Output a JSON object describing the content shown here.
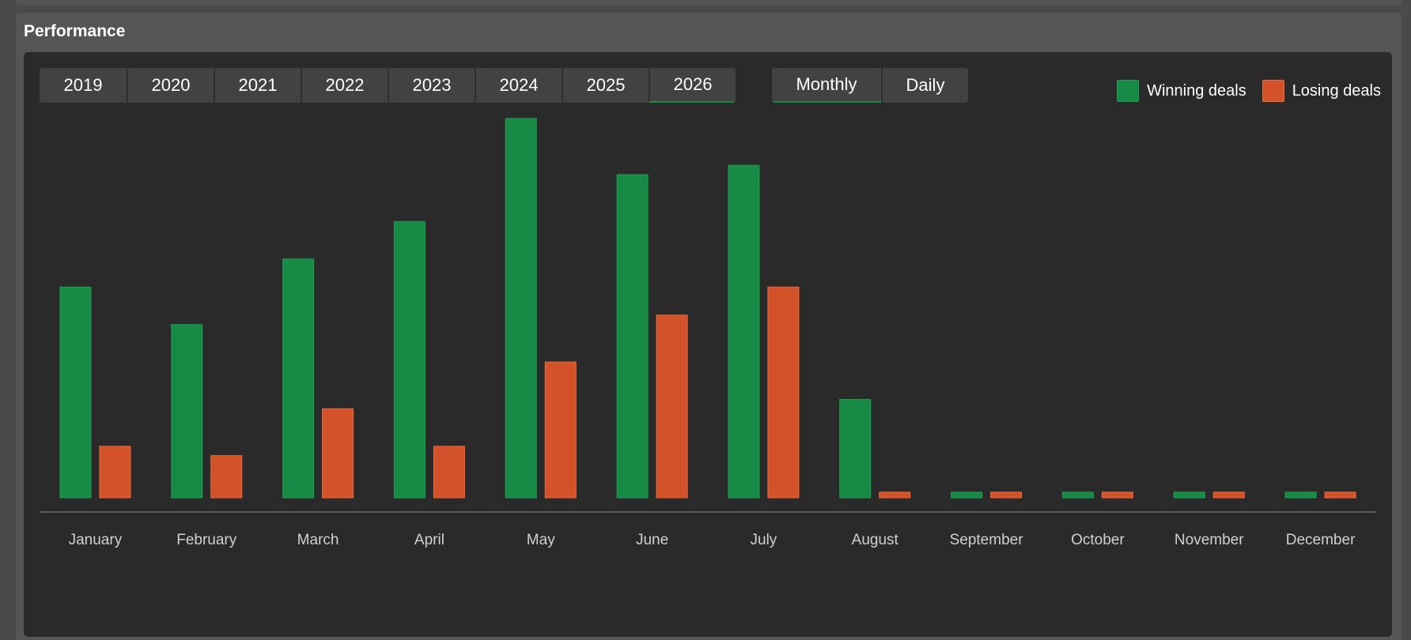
{
  "panel": {
    "title": "Performance"
  },
  "years": [
    "2019",
    "2020",
    "2021",
    "2022",
    "2023",
    "2024",
    "2025",
    "2026"
  ],
  "active_year": "2026",
  "modes": [
    "Monthly",
    "Daily"
  ],
  "active_mode": "Monthly",
  "colors": {
    "win": "#178a46",
    "win_border": "#1f9e52",
    "loss": "#d4522a",
    "loss_border": "#ee6a3c",
    "axis": "#8a8a8a",
    "tick": "#d0d0d0"
  },
  "chart_data": {
    "type": "bar",
    "title": "",
    "xlabel": "",
    "ylabel": "",
    "ylim": [
      0,
      41
    ],
    "legend_position": "top-right",
    "grid": false,
    "categories": [
      "January",
      "February",
      "March",
      "April",
      "May",
      "June",
      "July",
      "August",
      "September",
      "October",
      "November",
      "December"
    ],
    "series": [
      {
        "name": "Winning deals",
        "values": [
          22.5,
          18.5,
          25.5,
          29.5,
          40.5,
          34.5,
          35.5,
          10.5,
          0.6,
          0.6,
          0.6,
          0.6
        ]
      },
      {
        "name": "Losing deals",
        "values": [
          5.5,
          4.5,
          9.5,
          5.5,
          14.5,
          19.5,
          22.5,
          0.6,
          0.6,
          0.6,
          0.6,
          0.6
        ]
      }
    ]
  }
}
